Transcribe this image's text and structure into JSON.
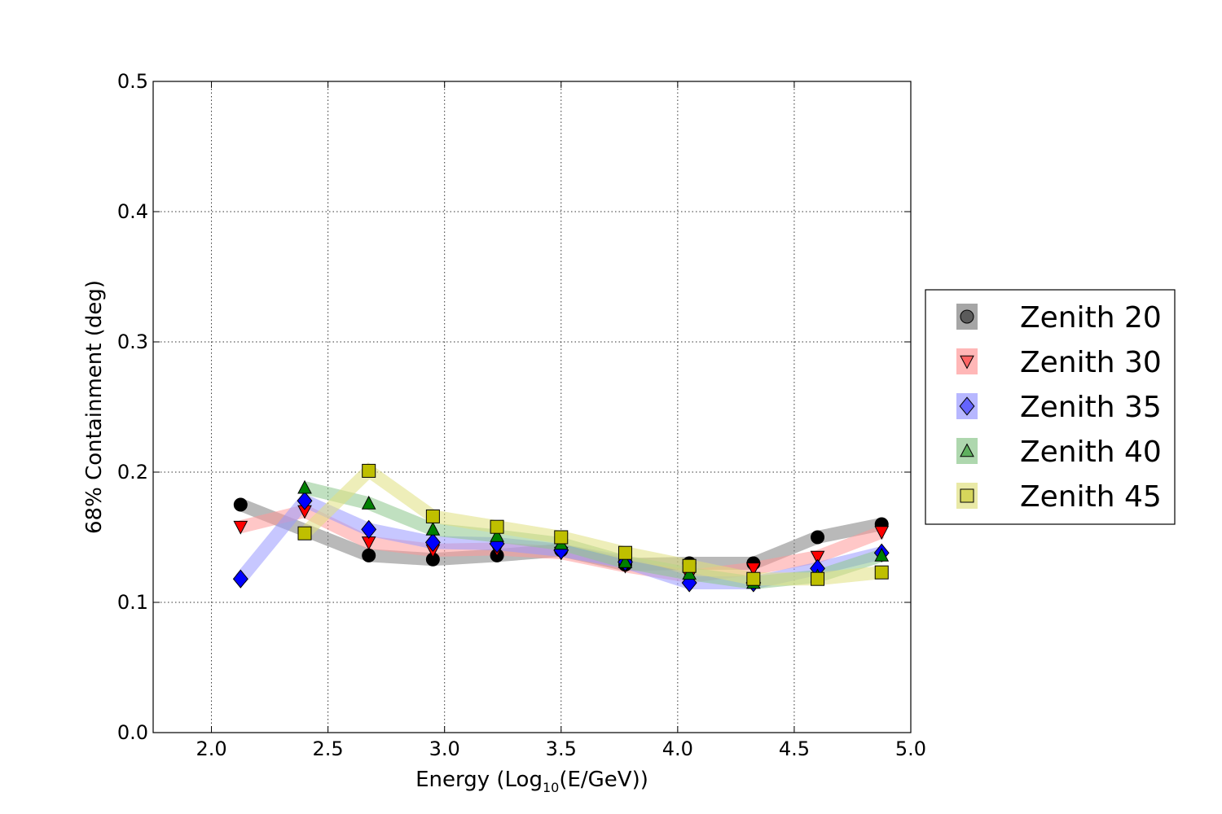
{
  "chart_data": {
    "type": "line",
    "title": "",
    "xlabel_prefix": "Energy (Log",
    "xlabel_sub": "10",
    "xlabel_suffix": "(E/GeV))",
    "ylabel": "68% Containment (deg)",
    "xlim": [
      1.75,
      5.0
    ],
    "ylim": [
      0.0,
      0.5
    ],
    "xticks": [
      2.0,
      2.5,
      3.0,
      3.5,
      4.0,
      4.5,
      5.0
    ],
    "xtick_labels": [
      "2.0",
      "2.5",
      "3.0",
      "3.5",
      "4.0",
      "4.5",
      "5.0"
    ],
    "yticks": [
      0.0,
      0.1,
      0.2,
      0.3,
      0.4,
      0.5
    ],
    "ytick_labels": [
      "0.0",
      "0.1",
      "0.2",
      "0.3",
      "0.4",
      "0.5"
    ],
    "grid": true,
    "legend_position": "outside-right",
    "series": [
      {
        "name": "Zenith 20",
        "color": "#000000",
        "band_color": "#808080",
        "marker": "circle",
        "x": [
          2.125,
          2.675,
          2.95,
          3.225,
          3.5,
          3.775,
          4.05,
          4.325,
          4.6,
          4.875
        ],
        "y": [
          0.175,
          0.136,
          0.133,
          0.136,
          0.14,
          0.129,
          0.13,
          0.13,
          0.15,
          0.16
        ]
      },
      {
        "name": "Zenith 30",
        "color": "#ff0000",
        "band_color": "#ff9999",
        "marker": "triangle-down",
        "x": [
          2.125,
          2.4,
          2.675,
          2.95,
          3.225,
          3.5,
          3.775,
          4.05,
          4.325,
          4.6,
          4.875
        ],
        "y": [
          0.158,
          0.17,
          0.146,
          0.14,
          0.141,
          0.138,
          0.128,
          0.12,
          0.126,
          0.135,
          0.154
        ]
      },
      {
        "name": "Zenith 35",
        "color": "#0000ff",
        "band_color": "#9999ff",
        "marker": "diamond",
        "x": [
          2.125,
          2.4,
          2.675,
          2.95,
          3.225,
          3.5,
          3.775,
          4.05,
          4.325,
          4.6,
          4.875
        ],
        "y": [
          0.118,
          0.178,
          0.156,
          0.146,
          0.145,
          0.14,
          0.131,
          0.115,
          0.115,
          0.126,
          0.138
        ]
      },
      {
        "name": "Zenith 40",
        "color": "#008000",
        "band_color": "#8cc68c",
        "marker": "triangle-up",
        "x": [
          2.4,
          2.675,
          2.95,
          3.225,
          3.5,
          3.775,
          4.05,
          4.325,
          4.6,
          4.875
        ],
        "y": [
          0.188,
          0.176,
          0.156,
          0.151,
          0.145,
          0.131,
          0.122,
          0.115,
          0.12,
          0.136
        ]
      },
      {
        "name": "Zenith 45",
        "color": "#bfbf00",
        "band_color": "#e0e080",
        "marker": "square",
        "x": [
          2.4,
          2.675,
          2.95,
          3.225,
          3.5,
          3.775,
          4.05,
          4.325,
          4.6,
          4.875
        ],
        "y": [
          0.153,
          0.201,
          0.166,
          0.158,
          0.15,
          0.138,
          0.128,
          0.118,
          0.118,
          0.123
        ]
      }
    ]
  }
}
